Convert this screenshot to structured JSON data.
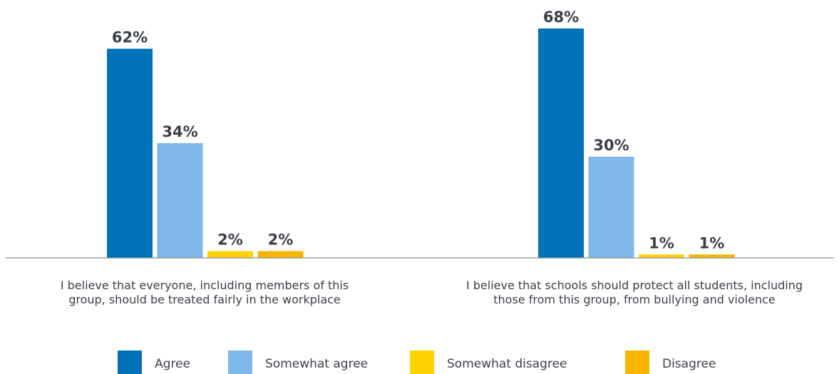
{
  "chart_data": {
    "type": "bar",
    "categories": [
      [
        "I believe that everyone, including members of this",
        "group, should be treated fairly in the workplace"
      ],
      [
        "I believe that schools should protect all students, including",
        "those from this group, from bullying and violence"
      ]
    ],
    "series": [
      {
        "name": "Agree",
        "color": "#0072b8",
        "values": [
          62,
          68
        ],
        "labels": [
          "62%",
          "68%"
        ]
      },
      {
        "name": "Somewhat agree",
        "color": "#7fb8e8",
        "values": [
          34,
          30
        ],
        "labels": [
          "34%",
          "30%"
        ]
      },
      {
        "name": "Somewhat disagree",
        "color": "#ffd200",
        "values": [
          2,
          1
        ],
        "labels": [
          "2%",
          "1%"
        ]
      },
      {
        "name": "Disagree",
        "color": "#f7b500",
        "values": [
          2,
          1
        ],
        "labels": [
          "2%",
          "1%"
        ]
      }
    ],
    "ylim": [
      0,
      68
    ],
    "grid": false,
    "legend_position": "bottom",
    "axis_color": "#8a8a8a",
    "text_color": "#3a3f47"
  }
}
